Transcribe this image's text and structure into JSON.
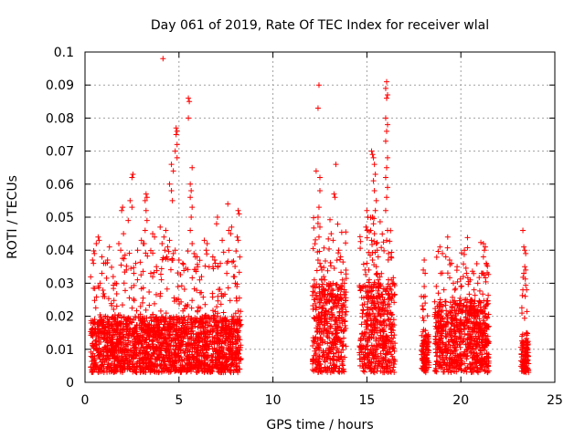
{
  "chart_data": {
    "type": "scatter",
    "title": "Day 061 of 2019, Rate Of TEC Index for receiver wlal",
    "xlabel": "GPS time / hours",
    "ylabel": "ROTI / TECUs",
    "xlim": [
      0,
      25
    ],
    "ylim": [
      0,
      0.1
    ],
    "xticks": [
      "0",
      "5",
      "10",
      "15",
      "20",
      "25"
    ],
    "yticks": [
      "0",
      "0.01",
      "0.02",
      "0.03",
      "0.04",
      "0.05",
      "0.06",
      "0.07",
      "0.08",
      "0.09",
      "0.1"
    ],
    "grid": true,
    "marker": "+",
    "color": "#ff0000",
    "clusters": [
      {
        "x_range": [
          0.3,
          8.3
        ],
        "typical_range": [
          0.003,
          0.02
        ],
        "max_value": 0.098
      },
      {
        "x_range": [
          12.1,
          13.9
        ],
        "typical_range": [
          0.003,
          0.03
        ],
        "max_value": 0.09
      },
      {
        "x_range": [
          14.6,
          16.5
        ],
        "typical_range": [
          0.003,
          0.03
        ],
        "max_value": 0.091
      },
      {
        "x_range": [
          17.9,
          18.3
        ],
        "typical_range": [
          0.003,
          0.015
        ],
        "max_value": 0.037
      },
      {
        "x_range": [
          18.6,
          21.5
        ],
        "typical_range": [
          0.003,
          0.025
        ],
        "max_value": 0.044
      },
      {
        "x_range": [
          23.2,
          23.6
        ],
        "typical_range": [
          0.003,
          0.013
        ],
        "max_value": 0.046
      }
    ],
    "series": [
      {
        "name": "ROTI",
        "points": [
          [
            4.15,
            0.098
          ],
          [
            12.45,
            0.09
          ],
          [
            12.4,
            0.083
          ],
          [
            16.05,
            0.091
          ],
          [
            16.0,
            0.089
          ],
          [
            16.1,
            0.087
          ],
          [
            16.05,
            0.086
          ],
          [
            16.0,
            0.08
          ],
          [
            16.1,
            0.078
          ],
          [
            16.05,
            0.076
          ],
          [
            16.0,
            0.073
          ],
          [
            16.1,
            0.068
          ],
          [
            16.05,
            0.065
          ],
          [
            16.0,
            0.062
          ],
          [
            16.1,
            0.059
          ],
          [
            16.05,
            0.056
          ],
          [
            16.0,
            0.052
          ],
          [
            16.1,
            0.046
          ],
          [
            16.05,
            0.043
          ],
          [
            16.15,
            0.039
          ],
          [
            5.5,
            0.086
          ],
          [
            5.55,
            0.085
          ],
          [
            5.5,
            0.08
          ],
          [
            4.85,
            0.077
          ],
          [
            4.9,
            0.076
          ],
          [
            4.85,
            0.075
          ],
          [
            4.9,
            0.072
          ],
          [
            4.8,
            0.07
          ],
          [
            4.9,
            0.068
          ],
          [
            4.6,
            0.066
          ],
          [
            4.7,
            0.064
          ],
          [
            4.5,
            0.06
          ],
          [
            4.6,
            0.058
          ],
          [
            4.65,
            0.055
          ],
          [
            5.7,
            0.065
          ],
          [
            5.6,
            0.06
          ],
          [
            5.65,
            0.058
          ],
          [
            5.6,
            0.056
          ],
          [
            5.7,
            0.053
          ],
          [
            5.65,
            0.05
          ],
          [
            5.6,
            0.046
          ],
          [
            5.7,
            0.042
          ],
          [
            2.55,
            0.063
          ],
          [
            2.5,
            0.062
          ],
          [
            2.4,
            0.055
          ],
          [
            2.5,
            0.053
          ],
          [
            2.3,
            0.049
          ],
          [
            3.25,
            0.057
          ],
          [
            3.3,
            0.056
          ],
          [
            3.2,
            0.055
          ],
          [
            3.25,
            0.052
          ],
          [
            3.3,
            0.049
          ],
          [
            3.2,
            0.046
          ],
          [
            3.15,
            0.042
          ],
          [
            2.0,
            0.053
          ],
          [
            1.95,
            0.052
          ],
          [
            2.05,
            0.045
          ],
          [
            1.8,
            0.042
          ],
          [
            1.9,
            0.04
          ],
          [
            13.35,
            0.066
          ],
          [
            13.25,
            0.057
          ],
          [
            13.3,
            0.056
          ],
          [
            12.3,
            0.064
          ],
          [
            12.5,
            0.062
          ],
          [
            12.5,
            0.058
          ],
          [
            12.45,
            0.053
          ],
          [
            12.4,
            0.05
          ],
          [
            12.5,
            0.047
          ],
          [
            12.45,
            0.044
          ],
          [
            15.25,
            0.07
          ],
          [
            15.3,
            0.069
          ],
          [
            15.35,
            0.068
          ],
          [
            15.4,
            0.066
          ],
          [
            15.45,
            0.063
          ],
          [
            15.35,
            0.061
          ],
          [
            15.4,
            0.058
          ],
          [
            15.5,
            0.055
          ],
          [
            15.45,
            0.052
          ],
          [
            15.3,
            0.05
          ],
          [
            15.35,
            0.048
          ],
          [
            15.2,
            0.046
          ],
          [
            15.4,
            0.045
          ],
          [
            15.25,
            0.043
          ],
          [
            15.0,
            0.052
          ],
          [
            15.05,
            0.05
          ],
          [
            14.95,
            0.047
          ],
          [
            15.5,
            0.042
          ],
          [
            15.55,
            0.04
          ],
          [
            15.6,
            0.038
          ],
          [
            7.6,
            0.054
          ],
          [
            7.05,
            0.05
          ],
          [
            7.0,
            0.048
          ],
          [
            7.8,
            0.047
          ],
          [
            7.65,
            0.046
          ],
          [
            7.75,
            0.045
          ],
          [
            7.3,
            0.043
          ],
          [
            8.15,
            0.052
          ],
          [
            8.2,
            0.051
          ],
          [
            8.1,
            0.044
          ],
          [
            8.15,
            0.043
          ],
          [
            6.35,
            0.043
          ],
          [
            6.5,
            0.042
          ],
          [
            6.45,
            0.04
          ],
          [
            0.7,
            0.044
          ],
          [
            0.75,
            0.043
          ],
          [
            0.6,
            0.042
          ],
          [
            0.5,
            0.039
          ],
          [
            0.4,
            0.037
          ],
          [
            0.45,
            0.036
          ],
          [
            1.3,
            0.041
          ],
          [
            1.2,
            0.037
          ],
          [
            1.1,
            0.036
          ],
          [
            0.9,
            0.038
          ],
          [
            3.0,
            0.043
          ],
          [
            3.1,
            0.042
          ],
          [
            2.8,
            0.04
          ],
          [
            3.6,
            0.045
          ],
          [
            3.7,
            0.044
          ],
          [
            4.0,
            0.047
          ],
          [
            4.3,
            0.046
          ],
          [
            4.2,
            0.044
          ],
          [
            4.1,
            0.042
          ],
          [
            4.25,
            0.04
          ],
          [
            13.1,
            0.045
          ],
          [
            13.2,
            0.043
          ],
          [
            13.5,
            0.04
          ],
          [
            13.6,
            0.038
          ],
          [
            16.3,
            0.031
          ],
          [
            16.4,
            0.03
          ],
          [
            18.05,
            0.037
          ],
          [
            18.0,
            0.034
          ],
          [
            18.1,
            0.033
          ],
          [
            18.05,
            0.029
          ],
          [
            19.3,
            0.044
          ],
          [
            19.2,
            0.038
          ],
          [
            19.4,
            0.037
          ],
          [
            19.5,
            0.036
          ],
          [
            19.8,
            0.035
          ],
          [
            20.3,
            0.033
          ],
          [
            20.5,
            0.031
          ],
          [
            21.2,
            0.042
          ],
          [
            21.3,
            0.041
          ],
          [
            21.25,
            0.04
          ],
          [
            21.2,
            0.038
          ],
          [
            21.35,
            0.036
          ],
          [
            23.3,
            0.046
          ],
          [
            23.35,
            0.041
          ],
          [
            23.4,
            0.04
          ],
          [
            23.45,
            0.039
          ],
          [
            23.4,
            0.035
          ],
          [
            23.45,
            0.034
          ],
          [
            23.35,
            0.033
          ],
          [
            23.5,
            0.028
          ],
          [
            17.9,
            0.026
          ],
          [
            18.1,
            0.024
          ],
          [
            18.0,
            0.022
          ],
          [
            12.2,
            0.031
          ],
          [
            12.6,
            0.034
          ],
          [
            12.7,
            0.032
          ],
          [
            13.7,
            0.031
          ],
          [
            13.8,
            0.03
          ],
          [
            12.4,
            0.037
          ],
          [
            12.5,
            0.036
          ],
          [
            12.55,
            0.035
          ],
          [
            15.5,
            0.035
          ],
          [
            15.55,
            0.033
          ],
          [
            15.6,
            0.031
          ],
          [
            15.3,
            0.037
          ],
          [
            15.0,
            0.036
          ],
          [
            14.9,
            0.034
          ],
          [
            6.8,
            0.038
          ],
          [
            6.9,
            0.037
          ],
          [
            7.2,
            0.036
          ],
          [
            5.0,
            0.037
          ],
          [
            5.2,
            0.036
          ],
          [
            5.8,
            0.039
          ],
          [
            6.0,
            0.035
          ],
          [
            5.9,
            0.034
          ],
          [
            4.8,
            0.04
          ],
          [
            4.7,
            0.039
          ],
          [
            4.5,
            0.043
          ],
          [
            4.4,
            0.041
          ],
          [
            4.35,
            0.038
          ],
          [
            2.2,
            0.034
          ],
          [
            2.7,
            0.036
          ],
          [
            2.6,
            0.033
          ],
          [
            1.5,
            0.032
          ],
          [
            1.6,
            0.03
          ],
          [
            0.8,
            0.03
          ],
          [
            0.9,
            0.033
          ],
          [
            3.5,
            0.033
          ],
          [
            3.8,
            0.035
          ],
          [
            7.9,
            0.032
          ],
          [
            8.0,
            0.03
          ],
          [
            6.1,
            0.031
          ],
          [
            6.2,
            0.032
          ],
          [
            20.9,
            0.03
          ],
          [
            21.1,
            0.033
          ],
          [
            19.1,
            0.028
          ],
          [
            19.6,
            0.03
          ],
          [
            20.0,
            0.029
          ],
          [
            20.7,
            0.028
          ],
          [
            18.8,
            0.027
          ],
          [
            18.9,
            0.025
          ],
          [
            23.25,
            0.014
          ],
          [
            23.3,
            0.012
          ],
          [
            23.35,
            0.011
          ],
          [
            23.4,
            0.009
          ],
          [
            23.45,
            0.008
          ],
          [
            23.3,
            0.006
          ],
          [
            23.4,
            0.005
          ],
          [
            23.35,
            0.004
          ],
          [
            23.5,
            0.015
          ]
        ]
      }
    ]
  }
}
